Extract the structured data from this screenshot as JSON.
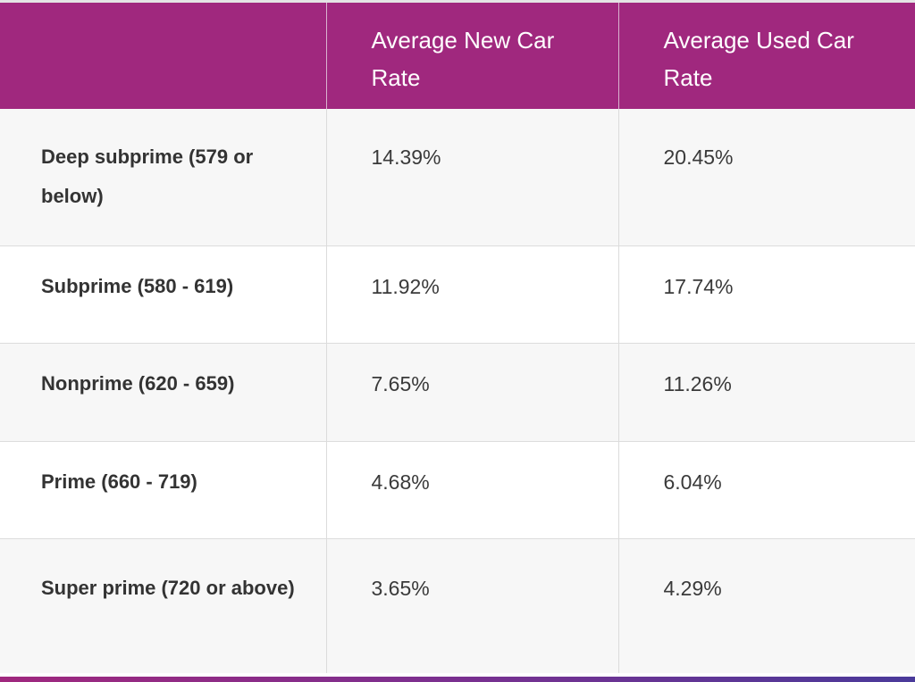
{
  "table": {
    "headers": [
      "",
      "Average New Car Rate",
      "Average Used Car Rate"
    ],
    "rows": [
      {
        "label": "Deep subprime (579 or below)",
        "new": "14.39%",
        "used": "20.45%"
      },
      {
        "label": "Subprime (580 - 619)",
        "new": "11.92%",
        "used": "17.74%"
      },
      {
        "label": "Nonprime (620 - 659)",
        "new": "7.65%",
        "used": "11.26%"
      },
      {
        "label": "Prime (660 - 719)",
        "new": "4.68%",
        "used": "6.04%"
      },
      {
        "label": "Super prime (720 or above)",
        "new": "3.65%",
        "used": "4.29%"
      }
    ]
  },
  "colors": {
    "header_bg": "#a0287e",
    "header_text": "#ffffff",
    "row_alt_bg": "#f7f7f7",
    "border": "#dcdcdc"
  }
}
